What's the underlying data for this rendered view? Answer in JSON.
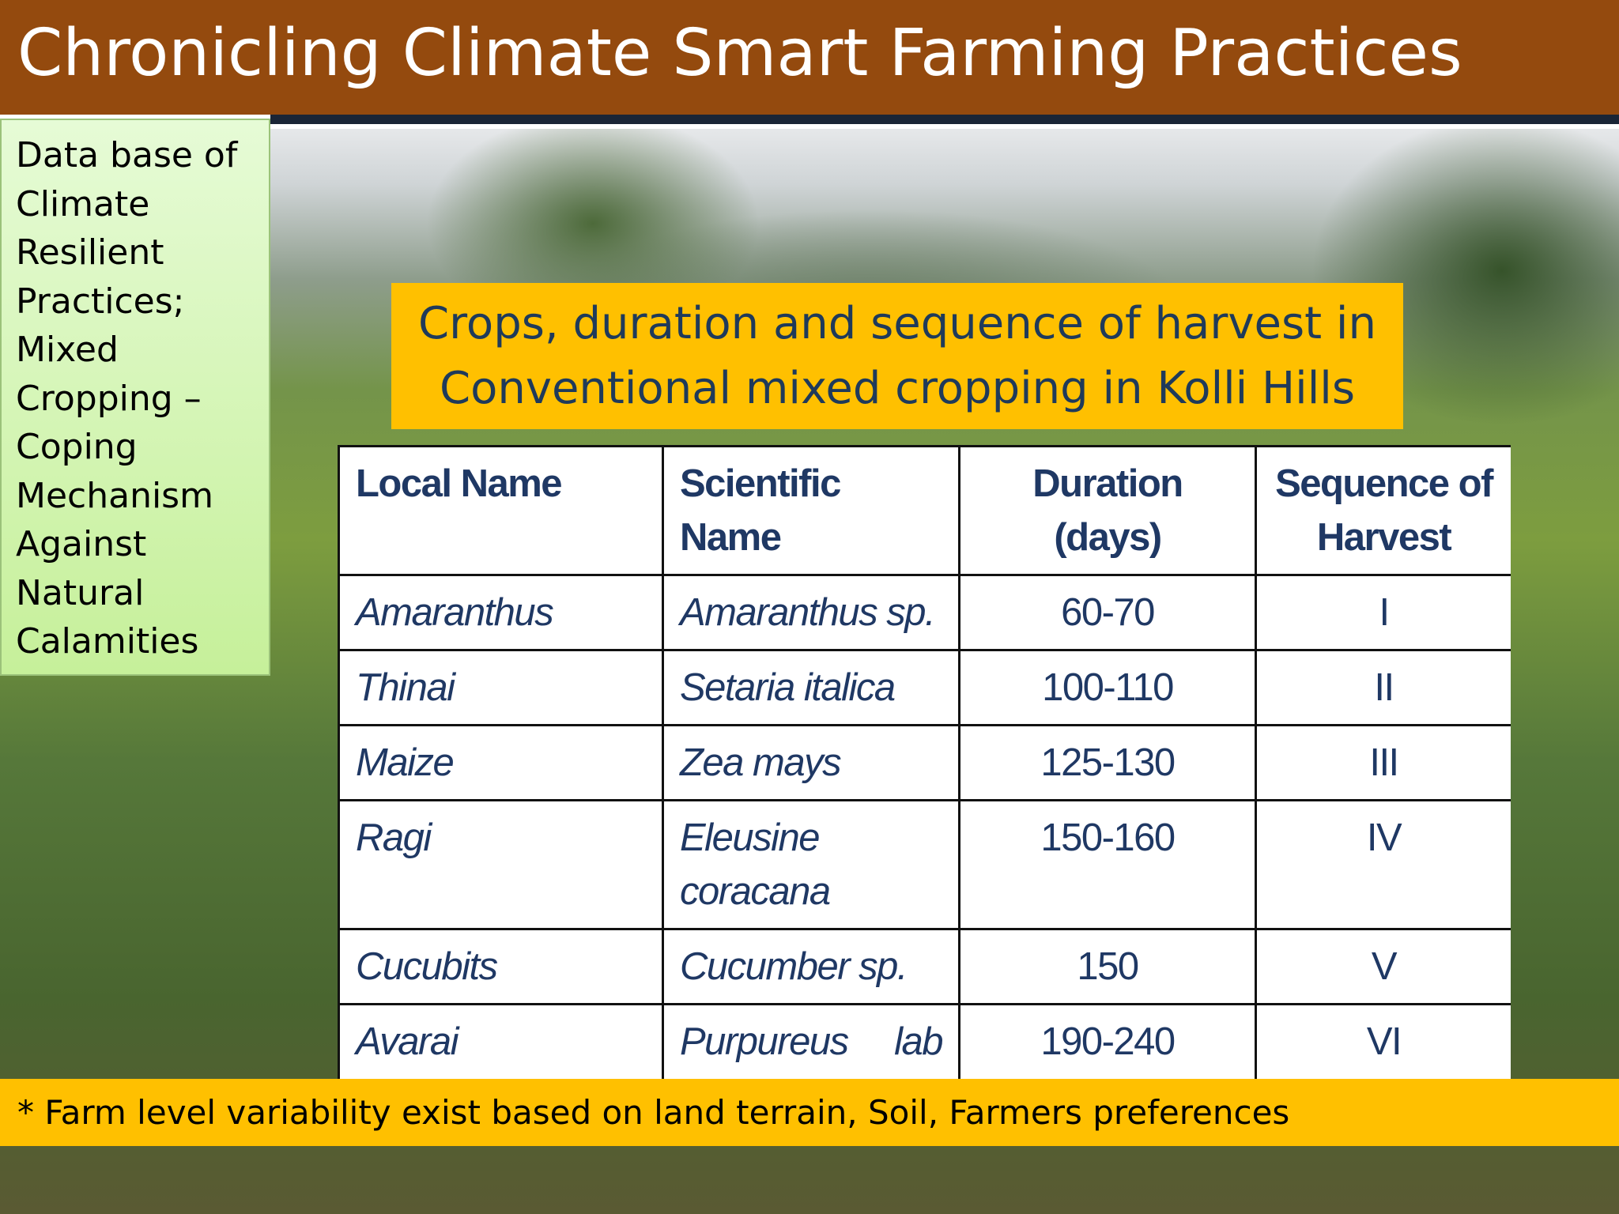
{
  "title": "Chronicling Climate Smart Farming Practices",
  "sidebar": {
    "text": "Data base of Climate Resilient Practices; Mixed Cropping – Coping Mechanism Against Natural Calamities"
  },
  "callout": {
    "text": "Crops, duration and sequence of harvest in Conventional mixed cropping in Kolli Hills"
  },
  "table": {
    "header": [
      "Local Name",
      "Scientific Name",
      "Duration (days)",
      "Sequence of Harvest"
    ],
    "rows": [
      [
        "Amaranthus",
        "Amaranthus sp.",
        "60-70",
        "I"
      ],
      [
        "Thinai",
        "Setaria italica",
        "100-110",
        "II"
      ],
      [
        "Maize",
        "Zea mays",
        "125-130",
        "III"
      ],
      [
        "Ragi",
        "Eleusine coracana",
        "150-160",
        "IV"
      ],
      [
        "Cucubits",
        "Cucumber sp.",
        "150",
        "V"
      ],
      [
        "Avarai",
        "Purpureus lab lab",
        "190-240",
        "VI"
      ]
    ]
  },
  "footnote": "* Farm level variability exist based on land terrain, Soil, Farmers preferences"
}
